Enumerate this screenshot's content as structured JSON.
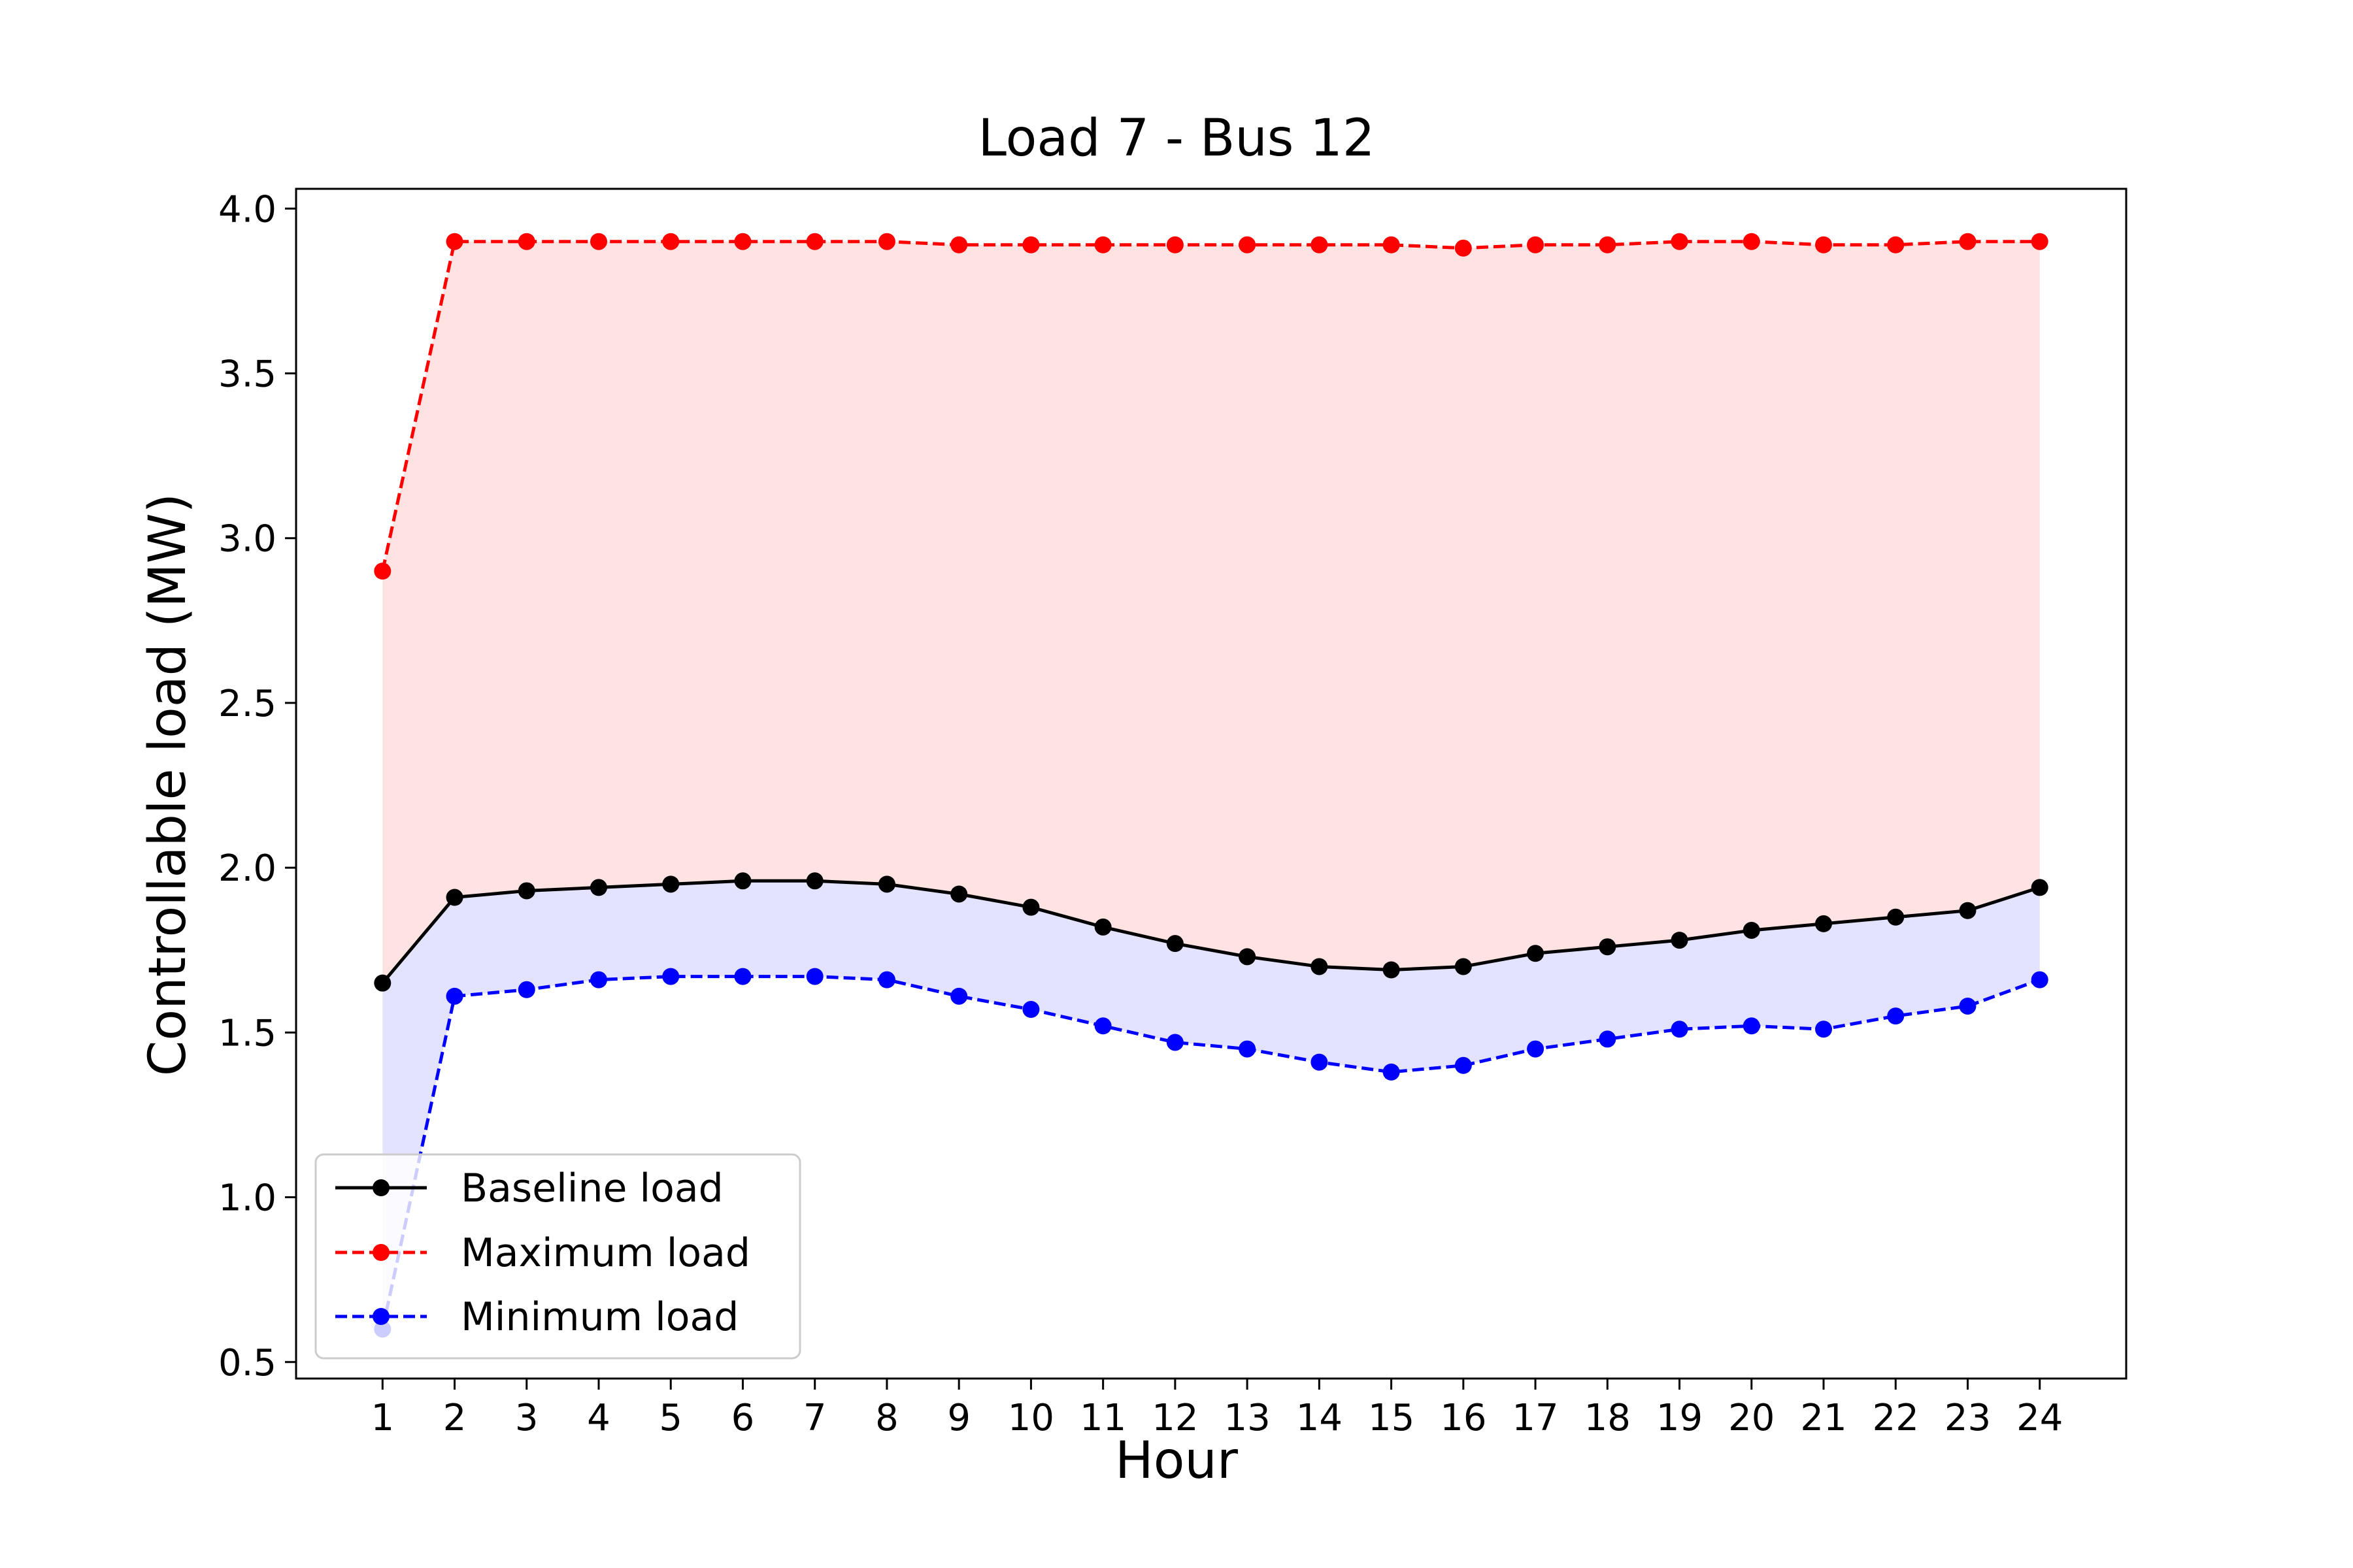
{
  "chart_data": {
    "type": "line",
    "title": "Load 7 - Bus 12",
    "xlabel": "Hour",
    "ylabel": "Controllable load (MW)",
    "x": [
      1,
      2,
      3,
      4,
      5,
      6,
      7,
      8,
      9,
      10,
      11,
      12,
      13,
      14,
      15,
      16,
      17,
      18,
      19,
      20,
      21,
      22,
      23,
      24
    ],
    "xlim": [
      -0.2,
      25.2
    ],
    "ylim": [
      0.45,
      4.06
    ],
    "yticks": [
      0.5,
      1.0,
      1.5,
      2.0,
      2.5,
      3.0,
      3.5,
      4.0
    ],
    "ytick_labels": [
      "0.5",
      "1.0",
      "1.5",
      "2.0",
      "2.5",
      "3.0",
      "3.5",
      "4.0"
    ],
    "legend_position": "lower-left",
    "grid": false,
    "series": [
      {
        "name": "Baseline load",
        "color": "#000000",
        "linestyle": "solid",
        "values": [
          1.65,
          1.91,
          1.93,
          1.94,
          1.95,
          1.96,
          1.96,
          1.95,
          1.92,
          1.88,
          1.82,
          1.77,
          1.73,
          1.7,
          1.69,
          1.7,
          1.74,
          1.76,
          1.78,
          1.81,
          1.83,
          1.85,
          1.87,
          1.94
        ]
      },
      {
        "name": "Maximum load",
        "color": "#ff0000",
        "linestyle": "dashed",
        "values": [
          2.9,
          3.9,
          3.9,
          3.9,
          3.9,
          3.9,
          3.9,
          3.9,
          3.89,
          3.89,
          3.89,
          3.89,
          3.89,
          3.89,
          3.89,
          3.88,
          3.89,
          3.89,
          3.9,
          3.9,
          3.89,
          3.89,
          3.9,
          3.9
        ]
      },
      {
        "name": "Minimum load",
        "color": "#0000ff",
        "linestyle": "dashed",
        "values": [
          0.6,
          1.61,
          1.63,
          1.66,
          1.67,
          1.67,
          1.67,
          1.66,
          1.61,
          1.57,
          1.52,
          1.47,
          1.45,
          1.41,
          1.38,
          1.4,
          1.45,
          1.48,
          1.51,
          1.52,
          1.51,
          1.55,
          1.58,
          1.66
        ]
      }
    ],
    "fills": [
      {
        "between": [
          "Baseline load",
          "Maximum load"
        ],
        "color": "#ffb3b3",
        "opacity": 0.38
      },
      {
        "between": [
          "Minimum load",
          "Baseline load"
        ],
        "color": "#9999ff",
        "opacity": 0.27
      }
    ]
  }
}
